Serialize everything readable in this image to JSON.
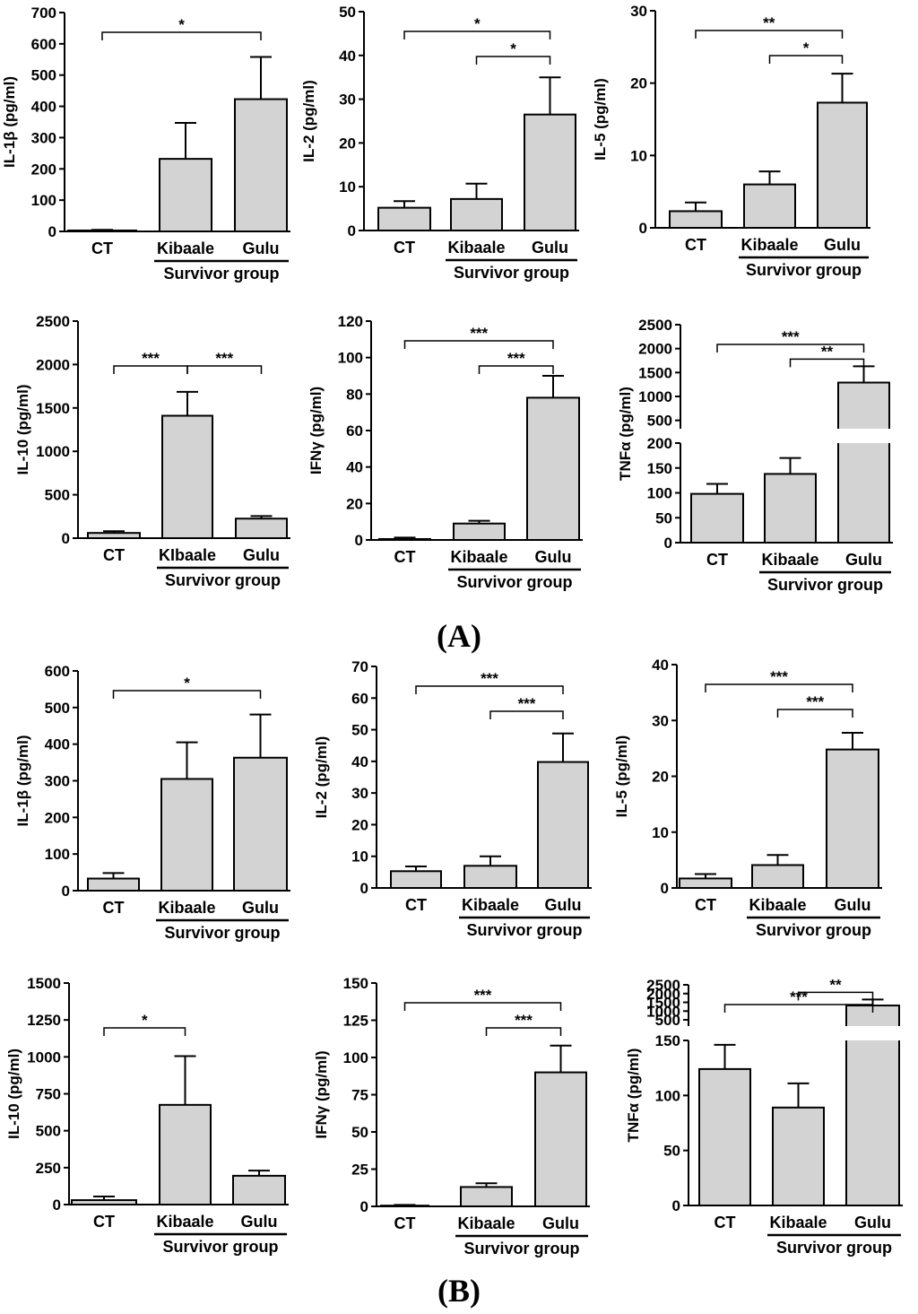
{
  "panel_labels": {
    "A": "(A)",
    "B": "(B)"
  },
  "group_label": "Survivor group",
  "colors": {
    "bar_fill": "#d3d3d3",
    "stroke": "#000000"
  },
  "chart_data": [
    {
      "id": "A1",
      "type": "bar",
      "ylabel": "IL-1β (pg/ml)",
      "categories": [
        "CT",
        "Kibaale",
        "Gulu"
      ],
      "values": [
        3,
        232,
        423
      ],
      "errors": [
        2,
        115,
        135
      ],
      "ylim": [
        0,
        700
      ],
      "yticks": [
        "0",
        "100",
        "200",
        "300",
        "400",
        "500",
        "600",
        "700"
      ],
      "sig": [
        {
          "from": 0,
          "to": 2,
          "label": "*"
        }
      ]
    },
    {
      "id": "A2",
      "type": "bar",
      "ylabel": "IL-2 (pg/ml)",
      "categories": [
        "CT",
        "Kibaale",
        "Gulu"
      ],
      "values": [
        5.2,
        7.2,
        26.5
      ],
      "errors": [
        1.5,
        3.5,
        8.5
      ],
      "ylim": [
        0,
        50
      ],
      "yticks": [
        "0",
        "10",
        "20",
        "30",
        "40",
        "50"
      ],
      "sig": [
        {
          "from": 0,
          "to": 2,
          "label": "*"
        },
        {
          "from": 1,
          "to": 2,
          "label": "*"
        }
      ]
    },
    {
      "id": "A3",
      "type": "bar",
      "ylabel": "IL-5 (pg/ml)",
      "categories": [
        "CT",
        "Kibaale",
        "Gulu"
      ],
      "values": [
        2.3,
        6.0,
        17.3
      ],
      "errors": [
        1.2,
        1.8,
        4.0
      ],
      "ylim": [
        0,
        30
      ],
      "yticks": [
        "0",
        "10",
        "20",
        "30"
      ],
      "sig": [
        {
          "from": 0,
          "to": 2,
          "label": "**"
        },
        {
          "from": 1,
          "to": 2,
          "label": "*"
        }
      ]
    },
    {
      "id": "A4",
      "type": "bar",
      "ylabel": "IL-10 (pg/ml)",
      "categories": [
        "CT",
        "KIbaale",
        "Gulu"
      ],
      "values": [
        60,
        1410,
        225
      ],
      "errors": [
        20,
        275,
        30
      ],
      "ylim": [
        0,
        2500
      ],
      "yticks": [
        "0",
        "500",
        "1000",
        "1500",
        "2000",
        "2500"
      ],
      "sig": [
        {
          "from": 0,
          "to": 1,
          "label": "***"
        },
        {
          "from": 1,
          "to": 2,
          "label": "***"
        }
      ]
    },
    {
      "id": "A5",
      "type": "bar",
      "ylabel": "IFNγ (pg/ml)",
      "categories": [
        "CT",
        "Kibaale",
        "Gulu"
      ],
      "values": [
        0.5,
        9,
        78
      ],
      "errors": [
        0.8,
        1.5,
        12
      ],
      "ylim": [
        0,
        120
      ],
      "yticks": [
        "0",
        "20",
        "40",
        "60",
        "80",
        "100",
        "120"
      ],
      "sig": [
        {
          "from": 0,
          "to": 2,
          "label": "***"
        },
        {
          "from": 1,
          "to": 2,
          "label": "***"
        }
      ]
    },
    {
      "id": "A6",
      "type": "bar",
      "ylabel": "TNFα (pg/ml)",
      "categories": [
        "CT",
        "Kibaale",
        "Gulu"
      ],
      "values": [
        98,
        138,
        1290
      ],
      "errors": [
        20,
        32,
        340
      ],
      "broken_axis": {
        "lower": [
          0,
          200
        ],
        "upper": [
          200,
          2500
        ],
        "lower_ticks": [
          0,
          50,
          100,
          150,
          200
        ],
        "upper_ticks": [
          500,
          1000,
          1500,
          2000,
          2500
        ]
      },
      "yticks": [
        "0",
        "50",
        "100",
        "150",
        "200",
        "500",
        "1000",
        "1500",
        "2000",
        "2500"
      ],
      "sig": [
        {
          "from": 0,
          "to": 2,
          "label": "***"
        },
        {
          "from": 1,
          "to": 2,
          "label": "**"
        }
      ]
    },
    {
      "id": "B1",
      "type": "bar",
      "ylabel": "IL-1β (pg/ml)",
      "categories": [
        "CT",
        "Kibaale",
        "Gulu"
      ],
      "values": [
        33,
        305,
        363
      ],
      "errors": [
        15,
        100,
        118
      ],
      "ylim": [
        0,
        600
      ],
      "yticks": [
        "0",
        "100",
        "200",
        "300",
        "400",
        "500",
        "600"
      ],
      "sig": [
        {
          "from": 0,
          "to": 2,
          "label": "*"
        }
      ]
    },
    {
      "id": "B2",
      "type": "bar",
      "ylabel": "IL-2 (pg/ml)",
      "categories": [
        "CT",
        "Kibaale",
        "Gulu"
      ],
      "values": [
        5.3,
        7.0,
        39.8
      ],
      "errors": [
        1.5,
        3.0,
        9.0
      ],
      "ylim": [
        0,
        70
      ],
      "yticks": [
        "0",
        "10",
        "20",
        "30",
        "40",
        "50",
        "60",
        "70"
      ],
      "sig": [
        {
          "from": 0,
          "to": 2,
          "label": "***"
        },
        {
          "from": 1,
          "to": 2,
          "label": "***"
        }
      ]
    },
    {
      "id": "B3",
      "type": "bar",
      "ylabel": "IL-5 (pg/ml)",
      "categories": [
        "CT",
        "Kibaale",
        "Gulu"
      ],
      "values": [
        1.7,
        4.1,
        24.8
      ],
      "errors": [
        0.8,
        1.8,
        3.0
      ],
      "ylim": [
        0,
        40
      ],
      "yticks": [
        "0",
        "10",
        "20",
        "30",
        "40"
      ],
      "sig": [
        {
          "from": 0,
          "to": 2,
          "label": "***"
        },
        {
          "from": 1,
          "to": 2,
          "label": "***"
        }
      ]
    },
    {
      "id": "B4",
      "type": "bar",
      "ylabel": "IL-10 (pg/ml)",
      "categories": [
        "CT",
        "Kibaale",
        "Gulu"
      ],
      "values": [
        30,
        675,
        195
      ],
      "errors": [
        25,
        330,
        35
      ],
      "ylim": [
        0,
        1500
      ],
      "yticks": [
        "0",
        "250",
        "500",
        "750",
        "1000",
        "1250",
        "1500"
      ],
      "sig": [
        {
          "from": 0,
          "to": 1,
          "label": "*"
        }
      ]
    },
    {
      "id": "B5",
      "type": "bar",
      "ylabel": "IFNγ (pg/ml)",
      "categories": [
        "CT",
        "Kibaale",
        "Gulu"
      ],
      "values": [
        0.5,
        13,
        90
      ],
      "errors": [
        0.5,
        2.5,
        18
      ],
      "ylim": [
        0,
        150
      ],
      "yticks": [
        "0",
        "25",
        "50",
        "75",
        "100",
        "125",
        "150"
      ],
      "sig": [
        {
          "from": 0,
          "to": 2,
          "label": "***"
        },
        {
          "from": 1,
          "to": 2,
          "label": "***"
        }
      ]
    },
    {
      "id": "B6",
      "type": "bar",
      "ylabel": "TNFα (pg/ml)",
      "categories": [
        "CT",
        "Kibaale",
        "Gulu"
      ],
      "values": [
        124,
        89,
        1320
      ],
      "errors": [
        22,
        22,
        340
      ],
      "broken_axis": {
        "lower": [
          0,
          150
        ],
        "upper": [
          150,
          2500
        ],
        "lower_ticks": [
          0,
          50,
          100,
          150
        ],
        "upper_ticks": [
          500,
          1000,
          1500,
          2000,
          2500
        ]
      },
      "yticks": [
        "0",
        "50",
        "100",
        "150",
        "500",
        "1000",
        "1500",
        "2000",
        "2500"
      ],
      "sig": [
        {
          "from": 0,
          "to": 2,
          "label": "***"
        },
        {
          "from": 1,
          "to": 2,
          "label": "**"
        }
      ]
    }
  ]
}
